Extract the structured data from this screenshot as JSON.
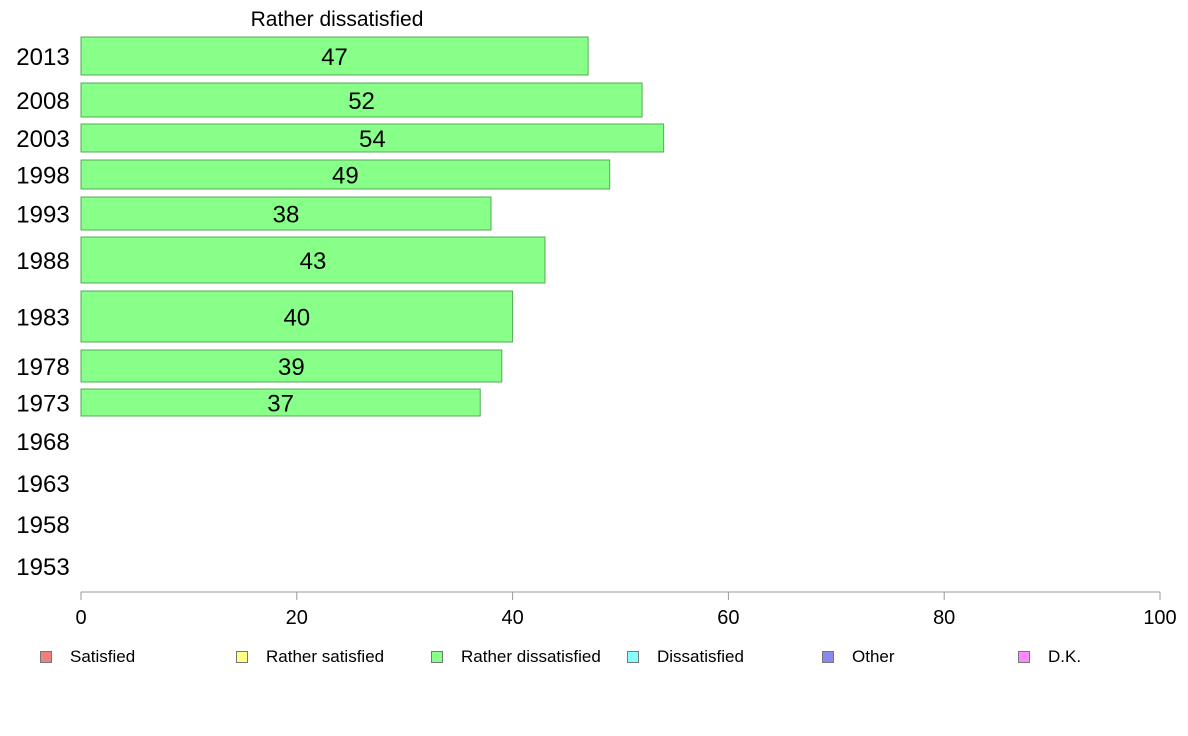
{
  "chart_data": {
    "type": "bar",
    "orientation": "horizontal",
    "title": "Rather dissatisfied",
    "categories": [
      "2013",
      "2008",
      "2003",
      "1998",
      "1993",
      "1988",
      "1983",
      "1978",
      "1973",
      "1968",
      "1963",
      "1958",
      "1953"
    ],
    "values": [
      47,
      52,
      54,
      49,
      38,
      43,
      40,
      39,
      37,
      null,
      null,
      null,
      null
    ],
    "xlim": [
      0,
      100
    ],
    "xticks": [
      0,
      20,
      40,
      60,
      80,
      100
    ],
    "grid": false,
    "bar_color": "#88ff88",
    "bar_edge_color": "#55aa55",
    "legend_position": "bottom",
    "legend": [
      {
        "label": "Satisfied",
        "color": "#f08080"
      },
      {
        "label": "Rather satisfied",
        "color": "#ffff88"
      },
      {
        "label": "Rather dissatisfied",
        "color": "#88ff88"
      },
      {
        "label": "Dissatisfied",
        "color": "#88ffff"
      },
      {
        "label": "Other",
        "color": "#8888ee"
      },
      {
        "label": "D.K.",
        "color": "#ff88ff"
      }
    ]
  }
}
